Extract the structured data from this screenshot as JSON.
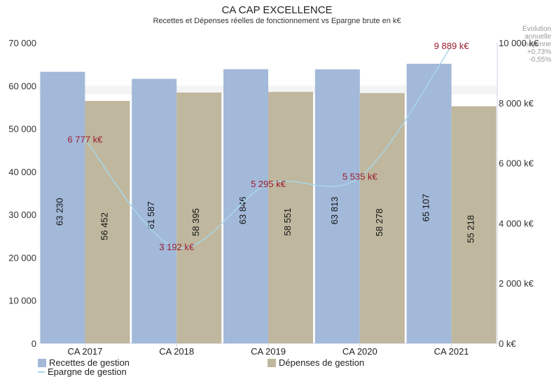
{
  "chart_data": {
    "type": "bar",
    "title": "CA CAP EXCELLENCE",
    "subtitle": "Recettes et Dépenses réelles de fonctionnement vs Epargne brute en k€",
    "note_lines": [
      "Évolution",
      "annuelle",
      "moyenne",
      "+0,73%",
      "-0,55%"
    ],
    "categories": [
      "CA 2017",
      "CA 2018",
      "CA 2019",
      "CA 2020",
      "CA 2021"
    ],
    "series": [
      {
        "name": "Recettes de gestion",
        "color": "#a3b9d9",
        "values": [
          63230,
          61587,
          63846,
          63813,
          65107
        ],
        "labels": [
          "63 230",
          "61 587",
          "63 846",
          "63 813",
          "65 107"
        ]
      },
      {
        "name": "Dépenses de gestion",
        "color": "#bfb79e",
        "values": [
          56452,
          58395,
          58551,
          58278,
          55218
        ],
        "labels": [
          "56 452",
          "58 395",
          "58 551",
          "58 278",
          "55 218"
        ]
      },
      {
        "name": "Epargne de gestion",
        "color": "#a8d8ea",
        "type": "line",
        "axis": "right",
        "values": [
          6777,
          3192,
          5295,
          5535,
          9889
        ],
        "labels": [
          "6 777 k€",
          "3 192 k€",
          "5 295 k€",
          "5 535 k€",
          "9 889 k€"
        ]
      }
    ],
    "ylim_left": [
      0,
      70000
    ],
    "yticks_left": [
      "0",
      "10 000",
      "20 000",
      "30 000",
      "40 000",
      "50 000",
      "60 000",
      "70 000"
    ],
    "ylim_right": [
      0,
      10000
    ],
    "yticks_right": [
      "0 k€",
      "2 000 k€",
      "4 000 k€",
      "6 000 k€",
      "8 000 k€",
      "10 000 k€"
    ],
    "line_label_color": "#9b1c2e",
    "legend_position": "bottom-left"
  }
}
